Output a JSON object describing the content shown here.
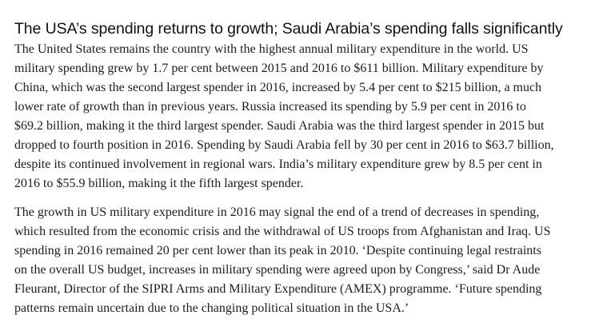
{
  "article": {
    "headline": "The USA’s spending returns to growth; Saudi Arabia’s spending falls significantly",
    "paragraphs": [
      {
        "lines": [
          "The United States remains the country with the highest annual military expenditure in the world. US",
          "military spending grew by 1.7 per cent between 2015 and 2016 to $611 billion. Military expenditure by",
          "China, which was the second largest spender in 2016, increased by 5.4 per cent to $215 billion, a much",
          "lower rate of growth than in previous years. Russia increased its spending by 5.9 per cent in 2016 to",
          "$69.2 billion, making it the third largest spender. Saudi Arabia was the third largest spender in 2015 but",
          "dropped to fourth position in 2016. Spending by Saudi Arabia fell by 30 per cent in 2016 to $63.7 billion,",
          "despite its continued involvement in regional wars. India’s military expenditure grew by 8.5 per cent in",
          "2016 to $55.9 billion, making it the fifth largest spender."
        ]
      },
      {
        "lines": [
          "The growth in US military expenditure in 2016 may signal the end of a trend of decreases in spending,",
          "which resulted from the economic crisis and the withdrawal of US troops from Afghanistan and Iraq. US",
          "spending in 2016 remained 20 per cent lower than its peak in 2010. ‘Despite continuing legal restraints",
          "on the overall US budget, increases in military spending were agreed upon by Congress,’ said Dr Aude",
          "Fleurant, Director of the SIPRI Arms and Military Expenditure (AMEX) programme. ‘Future spending",
          "patterns remain uncertain due to the changing political situation in the USA.’"
        ]
      }
    ]
  }
}
